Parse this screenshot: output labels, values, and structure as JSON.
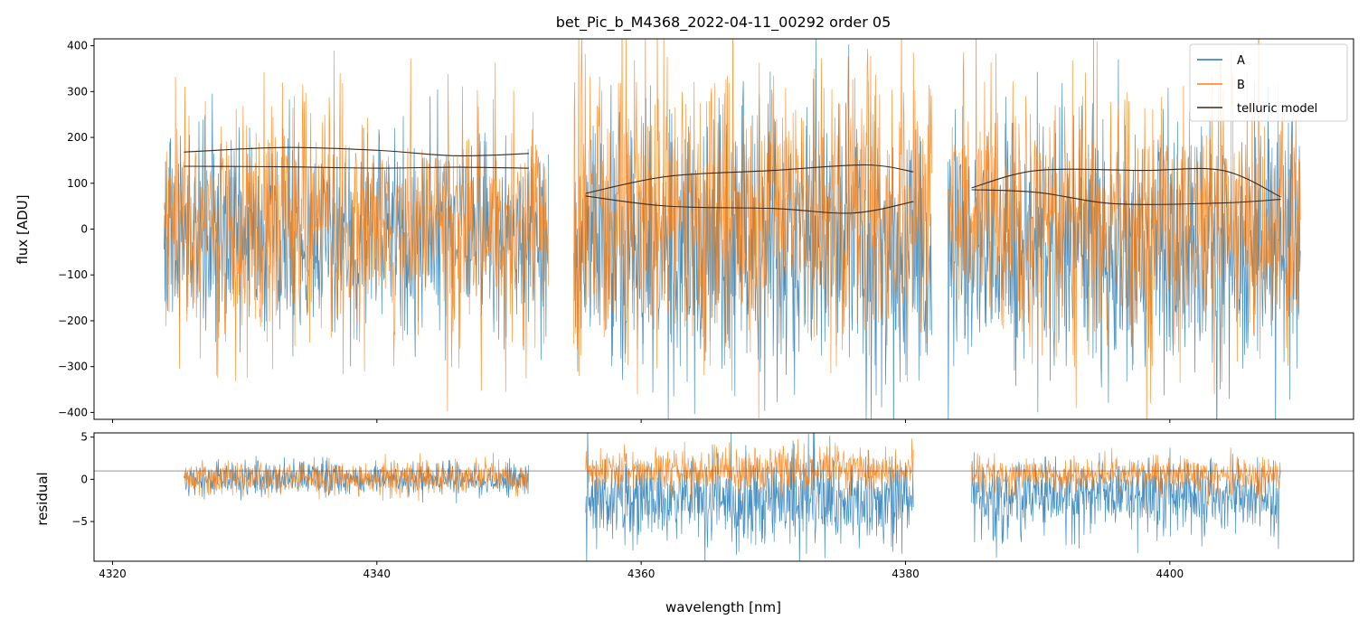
{
  "chart_data": {
    "type": "line",
    "title": "bet_Pic_b_M4368_2022-04-11_00292  order 05",
    "xlabel": "wavelength [nm]",
    "xlim": [
      4318.6,
      4413.9
    ],
    "xticks": [
      4320,
      4340,
      4360,
      4380,
      4400
    ],
    "segments": [
      [
        4323.9,
        4353.0
      ],
      [
        4354.9,
        4382.0
      ],
      [
        4383.2,
        4409.9
      ]
    ],
    "model_segments": [
      [
        4325.4,
        4351.5
      ],
      [
        4355.8,
        4380.6
      ],
      [
        4385.0,
        4408.4
      ]
    ],
    "colors": {
      "A": "#1f77b4",
      "B": "#ff7f0e",
      "model": "#3a2a1a",
      "axis": "#000000"
    },
    "legend": {
      "placement": "upper right",
      "entries": [
        {
          "label": "A",
          "color": "#1f77b4"
        },
        {
          "label": "B",
          "color": "#ff7f0e"
        },
        {
          "label": "telluric model",
          "color": "#3a2a1a"
        }
      ]
    },
    "top_panel": {
      "ylabel": "flux [ADU]",
      "ylim": [
        -415,
        415
      ],
      "yticks": [
        -400,
        -300,
        -200,
        -100,
        0,
        100,
        200,
        300,
        400
      ],
      "series": [
        {
          "name": "A",
          "mean": [
            -10,
            -40,
            -30
          ],
          "noise_sigma": [
            110,
            150,
            140
          ]
        },
        {
          "name": "B",
          "mean": [
            0,
            40,
            20
          ],
          "noise_sigma": [
            130,
            160,
            140
          ]
        }
      ],
      "telluric_model_upper": [
        [
          [
            4325.4,
            168
          ],
          [
            4333,
            178
          ],
          [
            4340,
            172
          ],
          [
            4346,
            160
          ],
          [
            4351.5,
            165
          ]
        ],
        [
          [
            4355.8,
            78
          ],
          [
            4362,
            115
          ],
          [
            4370,
            128
          ],
          [
            4377,
            140
          ],
          [
            4380.6,
            125
          ]
        ],
        [
          [
            4385.0,
            90
          ],
          [
            4390,
            128
          ],
          [
            4398,
            128
          ],
          [
            4404,
            128
          ],
          [
            4408.4,
            70
          ]
        ]
      ],
      "telluric_model_lower": [
        [
          [
            4325.4,
            137
          ],
          [
            4333,
            136
          ],
          [
            4340,
            133
          ],
          [
            4346,
            135
          ],
          [
            4351.5,
            133
          ]
        ],
        [
          [
            4355.8,
            72
          ],
          [
            4362,
            50
          ],
          [
            4370,
            45
          ],
          [
            4376,
            35
          ],
          [
            4380.6,
            60
          ]
        ],
        [
          [
            4385.0,
            86
          ],
          [
            4390,
            80
          ],
          [
            4396,
            55
          ],
          [
            4404,
            57
          ],
          [
            4408.4,
            65
          ]
        ]
      ]
    },
    "bottom_panel": {
      "ylabel": "residual",
      "ylim": [
        -9.7,
        5.5
      ],
      "yticks": [
        -5,
        0,
        5
      ],
      "reference_line": 1,
      "series": [
        {
          "name": "A",
          "mean": [
            0,
            -2.5,
            -2
          ],
          "noise_sigma": [
            1.0,
            2.8,
            2.2
          ]
        },
        {
          "name": "B",
          "mean": [
            0.2,
            1,
            0.5
          ],
          "noise_sigma": [
            1.0,
            1.3,
            1.0
          ]
        }
      ]
    }
  }
}
